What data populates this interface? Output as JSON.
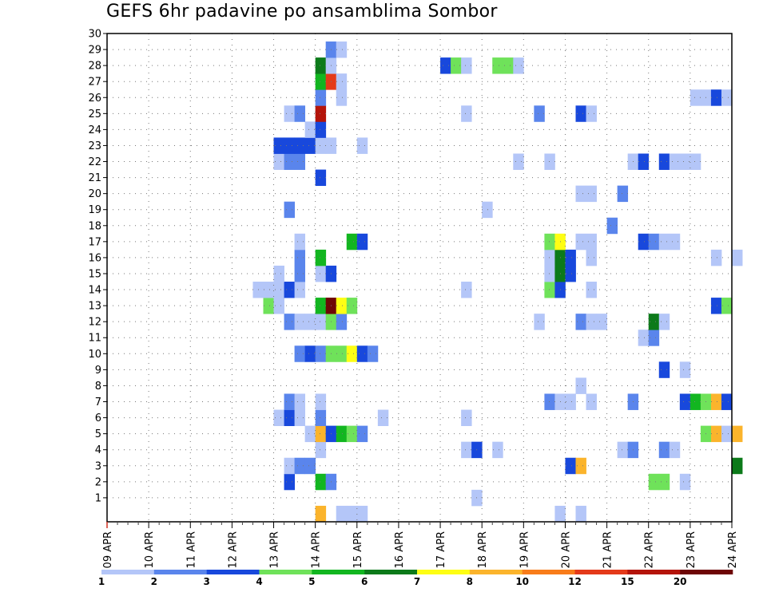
{
  "chart_data": {
    "type": "heatmap",
    "title": "GEFS 6hr padavine po ansamblima Sombor",
    "xlabel": "",
    "ylabel": "",
    "x_ticks": [
      "09 APR",
      "10 APR",
      "11 APR",
      "12 APR",
      "13 APR",
      "14 APR",
      "15 APR",
      "16 APR",
      "17 APR",
      "18 APR",
      "19 APR",
      "20 APR",
      "21 APR",
      "22 APR",
      "23 APR",
      "24 APR"
    ],
    "xlim": [
      "09 APR 00Z",
      "24 APR 00Z"
    ],
    "x_step_hours": 6,
    "y_ticks": [
      1,
      2,
      3,
      4,
      5,
      6,
      7,
      8,
      9,
      10,
      11,
      12,
      13,
      14,
      15,
      16,
      17,
      18,
      19,
      20,
      21,
      22,
      23,
      24,
      25,
      26,
      27,
      28,
      29,
      30
    ],
    "ylim": [
      0,
      30
    ],
    "grid": true,
    "legend": {
      "placement": "bottom",
      "labels": [
        "1",
        "2",
        "3",
        "4",
        "5",
        "6",
        "7",
        "8",
        "10",
        "12",
        "15",
        "20"
      ],
      "colors": [
        "#b4c6f8",
        "#5a85ec",
        "#1848dc",
        "#6fe25a",
        "#12b620",
        "#0c7a1a",
        "#fefe14",
        "#fbb42c",
        "#f87c1a",
        "#e43a1a",
        "#b4140a",
        "#6e0606"
      ]
    },
    "cells": [
      {
        "m": 0,
        "t": 20,
        "c": 7
      },
      {
        "m": 0,
        "t": 22,
        "c": 0
      },
      {
        "m": 0,
        "t": 23,
        "c": 0
      },
      {
        "m": 0,
        "t": 24,
        "c": 0
      },
      {
        "m": 0,
        "t": 43,
        "c": 0
      },
      {
        "m": 0,
        "t": 45,
        "c": 0
      },
      {
        "m": 1,
        "t": 35,
        "c": 0
      },
      {
        "m": 2,
        "t": 17,
        "c": 2
      },
      {
        "m": 2,
        "t": 20,
        "c": 4
      },
      {
        "m": 2,
        "t": 21,
        "c": 1
      },
      {
        "m": 2,
        "t": 52,
        "c": 3
      },
      {
        "m": 2,
        "t": 53,
        "c": 3
      },
      {
        "m": 2,
        "t": 55,
        "c": 0
      },
      {
        "m": 3,
        "t": 17,
        "c": 0
      },
      {
        "m": 3,
        "t": 18,
        "c": 1
      },
      {
        "m": 3,
        "t": 19,
        "c": 1
      },
      {
        "m": 3,
        "t": 44,
        "c": 2
      },
      {
        "m": 3,
        "t": 45,
        "c": 7
      },
      {
        "m": 3,
        "t": 60,
        "c": 5
      },
      {
        "m": 4,
        "t": 20,
        "c": 0
      },
      {
        "m": 4,
        "t": 34,
        "c": 0
      },
      {
        "m": 4,
        "t": 35,
        "c": 2
      },
      {
        "m": 4,
        "t": 37,
        "c": 0
      },
      {
        "m": 4,
        "t": 49,
        "c": 0
      },
      {
        "m": 4,
        "t": 50,
        "c": 1
      },
      {
        "m": 4,
        "t": 53,
        "c": 1
      },
      {
        "m": 4,
        "t": 54,
        "c": 0
      },
      {
        "m": 5,
        "t": 19,
        "c": 0
      },
      {
        "m": 5,
        "t": 20,
        "c": 7
      },
      {
        "m": 5,
        "t": 21,
        "c": 2
      },
      {
        "m": 5,
        "t": 22,
        "c": 4
      },
      {
        "m": 5,
        "t": 23,
        "c": 3
      },
      {
        "m": 5,
        "t": 24,
        "c": 1
      },
      {
        "m": 5,
        "t": 57,
        "c": 3
      },
      {
        "m": 5,
        "t": 58,
        "c": 7
      },
      {
        "m": 5,
        "t": 59,
        "c": 0
      },
      {
        "m": 5,
        "t": 60,
        "c": 7
      },
      {
        "m": 6,
        "t": 16,
        "c": 0
      },
      {
        "m": 6,
        "t": 17,
        "c": 2
      },
      {
        "m": 6,
        "t": 18,
        "c": 0
      },
      {
        "m": 6,
        "t": 20,
        "c": 1
      },
      {
        "m": 6,
        "t": 26,
        "c": 0
      },
      {
        "m": 6,
        "t": 34,
        "c": 0
      },
      {
        "m": 7,
        "t": 17,
        "c": 1
      },
      {
        "m": 7,
        "t": 18,
        "c": 0
      },
      {
        "m": 7,
        "t": 20,
        "c": 0
      },
      {
        "m": 7,
        "t": 42,
        "c": 1
      },
      {
        "m": 7,
        "t": 43,
        "c": 0
      },
      {
        "m": 7,
        "t": 44,
        "c": 0
      },
      {
        "m": 7,
        "t": 46,
        "c": 0
      },
      {
        "m": 7,
        "t": 50,
        "c": 1
      },
      {
        "m": 7,
        "t": 55,
        "c": 2
      },
      {
        "m": 7,
        "t": 56,
        "c": 4
      },
      {
        "m": 7,
        "t": 57,
        "c": 3
      },
      {
        "m": 7,
        "t": 58,
        "c": 7
      },
      {
        "m": 7,
        "t": 59,
        "c": 2
      },
      {
        "m": 8,
        "t": 45,
        "c": 0
      },
      {
        "m": 9,
        "t": 53,
        "c": 2
      },
      {
        "m": 9,
        "t": 55,
        "c": 0
      },
      {
        "m": 10,
        "t": 18,
        "c": 1
      },
      {
        "m": 10,
        "t": 19,
        "c": 2
      },
      {
        "m": 10,
        "t": 20,
        "c": 1
      },
      {
        "m": 10,
        "t": 21,
        "c": 3
      },
      {
        "m": 10,
        "t": 22,
        "c": 3
      },
      {
        "m": 10,
        "t": 23,
        "c": 6
      },
      {
        "m": 10,
        "t": 24,
        "c": 2
      },
      {
        "m": 10,
        "t": 25,
        "c": 1
      },
      {
        "m": 11,
        "t": 51,
        "c": 0
      },
      {
        "m": 11,
        "t": 52,
        "c": 1
      },
      {
        "m": 12,
        "t": 17,
        "c": 1
      },
      {
        "m": 12,
        "t": 18,
        "c": 0
      },
      {
        "m": 12,
        "t": 19,
        "c": 0
      },
      {
        "m": 12,
        "t": 20,
        "c": 0
      },
      {
        "m": 12,
        "t": 21,
        "c": 3
      },
      {
        "m": 12,
        "t": 22,
        "c": 1
      },
      {
        "m": 12,
        "t": 41,
        "c": 0
      },
      {
        "m": 12,
        "t": 45,
        "c": 1
      },
      {
        "m": 12,
        "t": 46,
        "c": 0
      },
      {
        "m": 12,
        "t": 47,
        "c": 0
      },
      {
        "m": 12,
        "t": 52,
        "c": 5
      },
      {
        "m": 12,
        "t": 53,
        "c": 0
      },
      {
        "m": 13,
        "t": 15,
        "c": 3
      },
      {
        "m": 13,
        "t": 16,
        "c": 0
      },
      {
        "m": 13,
        "t": 20,
        "c": 4
      },
      {
        "m": 13,
        "t": 21,
        "c": 11
      },
      {
        "m": 13,
        "t": 22,
        "c": 6
      },
      {
        "m": 13,
        "t": 23,
        "c": 3
      },
      {
        "m": 13,
        "t": 58,
        "c": 2
      },
      {
        "m": 13,
        "t": 59,
        "c": 3
      },
      {
        "m": 14,
        "t": 14,
        "c": 0
      },
      {
        "m": 14,
        "t": 15,
        "c": 0
      },
      {
        "m": 14,
        "t": 16,
        "c": 0
      },
      {
        "m": 14,
        "t": 17,
        "c": 2
      },
      {
        "m": 14,
        "t": 18,
        "c": 0
      },
      {
        "m": 14,
        "t": 34,
        "c": 0
      },
      {
        "m": 14,
        "t": 42,
        "c": 3
      },
      {
        "m": 14,
        "t": 43,
        "c": 2
      },
      {
        "m": 14,
        "t": 46,
        "c": 0
      },
      {
        "m": 15,
        "t": 16,
        "c": 0
      },
      {
        "m": 15,
        "t": 18,
        "c": 1
      },
      {
        "m": 15,
        "t": 20,
        "c": 0
      },
      {
        "m": 15,
        "t": 21,
        "c": 2
      },
      {
        "m": 15,
        "t": 42,
        "c": 0
      },
      {
        "m": 15,
        "t": 43,
        "c": 5
      },
      {
        "m": 15,
        "t": 44,
        "c": 2
      },
      {
        "m": 16,
        "t": 18,
        "c": 1
      },
      {
        "m": 16,
        "t": 20,
        "c": 4
      },
      {
        "m": 16,
        "t": 42,
        "c": 0
      },
      {
        "m": 16,
        "t": 43,
        "c": 5
      },
      {
        "m": 16,
        "t": 44,
        "c": 2
      },
      {
        "m": 16,
        "t": 46,
        "c": 0
      },
      {
        "m": 16,
        "t": 58,
        "c": 0
      },
      {
        "m": 16,
        "t": 60,
        "c": 0
      },
      {
        "m": 17,
        "t": 18,
        "c": 0
      },
      {
        "m": 17,
        "t": 23,
        "c": 4
      },
      {
        "m": 17,
        "t": 24,
        "c": 2
      },
      {
        "m": 17,
        "t": 42,
        "c": 3
      },
      {
        "m": 17,
        "t": 43,
        "c": 6
      },
      {
        "m": 17,
        "t": 45,
        "c": 0
      },
      {
        "m": 17,
        "t": 46,
        "c": 0
      },
      {
        "m": 17,
        "t": 51,
        "c": 2
      },
      {
        "m": 17,
        "t": 52,
        "c": 1
      },
      {
        "m": 17,
        "t": 53,
        "c": 0
      },
      {
        "m": 17,
        "t": 54,
        "c": 0
      },
      {
        "m": 18,
        "t": 48,
        "c": 1
      },
      {
        "m": 19,
        "t": 17,
        "c": 1
      },
      {
        "m": 19,
        "t": 36,
        "c": 0
      },
      {
        "m": 20,
        "t": 45,
        "c": 0
      },
      {
        "m": 20,
        "t": 46,
        "c": 0
      },
      {
        "m": 20,
        "t": 49,
        "c": 1
      },
      {
        "m": 21,
        "t": 20,
        "c": 2
      },
      {
        "m": 22,
        "t": 16,
        "c": 0
      },
      {
        "m": 22,
        "t": 17,
        "c": 1
      },
      {
        "m": 22,
        "t": 18,
        "c": 1
      },
      {
        "m": 22,
        "t": 39,
        "c": 0
      },
      {
        "m": 22,
        "t": 42,
        "c": 0
      },
      {
        "m": 22,
        "t": 50,
        "c": 0
      },
      {
        "m": 22,
        "t": 51,
        "c": 2
      },
      {
        "m": 22,
        "t": 53,
        "c": 2
      },
      {
        "m": 22,
        "t": 54,
        "c": 0
      },
      {
        "m": 22,
        "t": 55,
        "c": 0
      },
      {
        "m": 22,
        "t": 56,
        "c": 0
      },
      {
        "m": 23,
        "t": 16,
        "c": 2
      },
      {
        "m": 23,
        "t": 17,
        "c": 2
      },
      {
        "m": 23,
        "t": 18,
        "c": 2
      },
      {
        "m": 23,
        "t": 19,
        "c": 2
      },
      {
        "m": 23,
        "t": 20,
        "c": 0
      },
      {
        "m": 23,
        "t": 21,
        "c": 0
      },
      {
        "m": 23,
        "t": 24,
        "c": 0
      },
      {
        "m": 24,
        "t": 19,
        "c": 0
      },
      {
        "m": 24,
        "t": 20,
        "c": 2
      },
      {
        "m": 25,
        "t": 17,
        "c": 0
      },
      {
        "m": 25,
        "t": 18,
        "c": 1
      },
      {
        "m": 25,
        "t": 20,
        "c": 10
      },
      {
        "m": 25,
        "t": 34,
        "c": 0
      },
      {
        "m": 25,
        "t": 41,
        "c": 1
      },
      {
        "m": 25,
        "t": 45,
        "c": 2
      },
      {
        "m": 25,
        "t": 46,
        "c": 0
      },
      {
        "m": 26,
        "t": 20,
        "c": 1
      },
      {
        "m": 26,
        "t": 22,
        "c": 0
      },
      {
        "m": 26,
        "t": 56,
        "c": 0
      },
      {
        "m": 26,
        "t": 57,
        "c": 0
      },
      {
        "m": 26,
        "t": 58,
        "c": 2
      },
      {
        "m": 26,
        "t": 59,
        "c": 0
      },
      {
        "m": 27,
        "t": 20,
        "c": 4
      },
      {
        "m": 27,
        "t": 21,
        "c": 9
      },
      {
        "m": 27,
        "t": 22,
        "c": 0
      },
      {
        "m": 28,
        "t": 20,
        "c": 5
      },
      {
        "m": 28,
        "t": 21,
        "c": 0
      },
      {
        "m": 28,
        "t": 32,
        "c": 2
      },
      {
        "m": 28,
        "t": 33,
        "c": 3
      },
      {
        "m": 28,
        "t": 34,
        "c": 0
      },
      {
        "m": 28,
        "t": 37,
        "c": 3
      },
      {
        "m": 28,
        "t": 38,
        "c": 3
      },
      {
        "m": 28,
        "t": 39,
        "c": 0
      },
      {
        "m": 29,
        "t": 21,
        "c": 1
      },
      {
        "m": 29,
        "t": 22,
        "c": 0
      }
    ]
  }
}
